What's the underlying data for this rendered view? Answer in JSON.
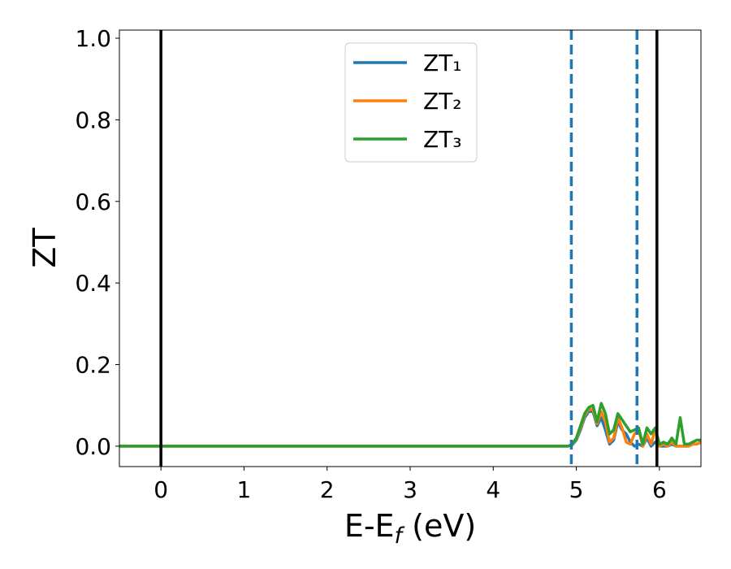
{
  "chart_data": {
    "type": "line",
    "xlabel": [
      "E-E",
      "f",
      " (eV)"
    ],
    "ylabel": "ZT",
    "xlim": [
      -0.5,
      6.5
    ],
    "ylim": [
      -0.05,
      1.02
    ],
    "xticks": [
      0,
      1,
      2,
      3,
      4,
      5,
      6
    ],
    "yticks": [
      {
        "value": 0,
        "label": "0.0"
      },
      0.2,
      0.4,
      0.6,
      0.8,
      {
        "value": 1,
        "label": "1.0"
      }
    ],
    "legend": "upper center",
    "x": [
      -0.5,
      4.9,
      4.95,
      5.0,
      5.05,
      5.1,
      5.15,
      5.2,
      5.25,
      5.3,
      5.35,
      5.4,
      5.45,
      5.5,
      5.55,
      5.6,
      5.65,
      5.7,
      5.75,
      5.8,
      5.85,
      5.9,
      5.95,
      6.0,
      6.05,
      6.1,
      6.15,
      6.2,
      6.25,
      6.3,
      6.35,
      6.4,
      6.45,
      6.5
    ],
    "series": [
      {
        "name": "ZT₁",
        "color": "#1f77b4",
        "values": [
          0,
          0,
          0.003,
          0.015,
          0.04,
          0.07,
          0.085,
          0.085,
          0.05,
          0.07,
          0.04,
          0.005,
          0.015,
          0.06,
          0.04,
          0.03,
          0.01,
          0,
          0.005,
          0,
          0.02,
          0,
          0.01,
          0,
          0,
          0,
          0.005,
          0,
          0,
          0,
          0,
          0.005,
          0.005,
          0.01
        ]
      },
      {
        "name": "ZT₂",
        "color": "#ff7f0e",
        "values": [
          0,
          0,
          0.004,
          0.018,
          0.045,
          0.075,
          0.09,
          0.09,
          0.055,
          0.085,
          0.06,
          0.01,
          0.02,
          0.07,
          0.045,
          0.01,
          0.005,
          0.03,
          0.04,
          0,
          0.03,
          0.005,
          0.04,
          0,
          0.005,
          0,
          0.01,
          0,
          0,
          0,
          0,
          0.005,
          0.005,
          0.01
        ]
      },
      {
        "name": "ZT₃",
        "color": "#2ca02c",
        "values": [
          0,
          0,
          0.005,
          0.02,
          0.05,
          0.08,
          0.095,
          0.1,
          0.06,
          0.105,
          0.08,
          0.03,
          0.04,
          0.08,
          0.065,
          0.05,
          0.035,
          0.04,
          0.045,
          0.005,
          0.045,
          0.03,
          0.045,
          0.005,
          0.01,
          0.005,
          0.02,
          0.005,
          0.07,
          0.005,
          0.005,
          0.01,
          0.015,
          0.015
        ]
      }
    ],
    "vlines": [
      {
        "x": 0,
        "color": "#000000",
        "style": "solid"
      },
      {
        "x": 5.97,
        "color": "#000000",
        "style": "solid"
      },
      {
        "x": 4.94,
        "color": "#1f77b4",
        "style": "dashed"
      },
      {
        "x": 5.73,
        "color": "#1f77b4",
        "style": "dashed"
      }
    ]
  }
}
